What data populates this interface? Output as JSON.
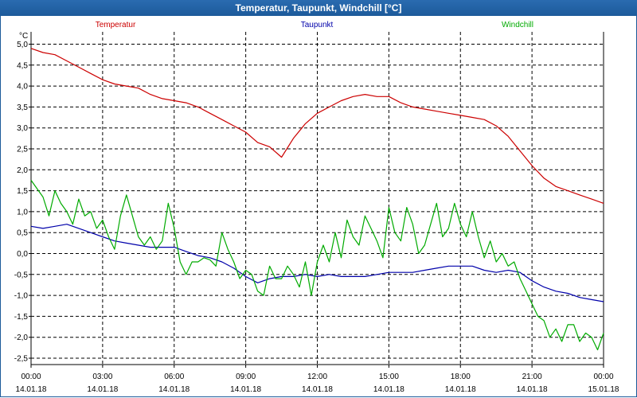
{
  "window": {
    "title": "Temperatur, Taupunkt, Windchill [°C]"
  },
  "chart_data": {
    "type": "line",
    "title": "Temperatur, Taupunkt, Windchill [°C]",
    "ylabel": "°C",
    "xlabel": "",
    "ylim": [
      -2.75,
      5.25
    ],
    "xlim": [
      0,
      24
    ],
    "grid": true,
    "legend_position": "top",
    "y_ticks": [
      5.0,
      4.5,
      4.0,
      3.5,
      3.0,
      2.5,
      2.0,
      1.5,
      1.0,
      0.5,
      0.0,
      -0.5,
      -1.0,
      -1.5,
      -2.0,
      -2.5
    ],
    "y_tick_labels": [
      "5,0",
      "4,5",
      "4,0",
      "3,5",
      "3,0",
      "2,5",
      "2,0",
      "1,5",
      "1,0",
      "0,5",
      "0,0",
      "-0,5",
      "-1,0",
      "-1,5",
      "-2,0",
      "-2,5"
    ],
    "x_ticks": [
      {
        "time": "00:00",
        "date": "14.01.18"
      },
      {
        "time": "03:00",
        "date": "14.01.18"
      },
      {
        "time": "06:00",
        "date": "14.01.18"
      },
      {
        "time": "09:00",
        "date": "14.01.18"
      },
      {
        "time": "12:00",
        "date": "14.01.18"
      },
      {
        "time": "15:00",
        "date": "14.01.18"
      },
      {
        "time": "18:00",
        "date": "14.01.18"
      },
      {
        "time": "21:00",
        "date": "14.01.18"
      },
      {
        "time": "00:00",
        "date": "15.01.18"
      }
    ],
    "series": [
      {
        "name": "Temperatur",
        "color": "#cc0000",
        "x": [
          0,
          0.5,
          1,
          1.5,
          2,
          2.5,
          3,
          3.5,
          4,
          4.5,
          5,
          5.5,
          6,
          6.5,
          7,
          7.5,
          8,
          8.5,
          9,
          9.5,
          10,
          10.5,
          11,
          11.5,
          12,
          12.5,
          13,
          13.5,
          14,
          14.5,
          15,
          15.5,
          16,
          16.5,
          17,
          17.5,
          18,
          18.5,
          19,
          19.5,
          20,
          20.5,
          21,
          21.5,
          22,
          22.5,
          23,
          23.5,
          24
        ],
        "values": [
          4.9,
          4.8,
          4.75,
          4.6,
          4.45,
          4.3,
          4.15,
          4.05,
          4.0,
          3.95,
          3.8,
          3.7,
          3.65,
          3.6,
          3.5,
          3.35,
          3.2,
          3.05,
          2.9,
          2.65,
          2.55,
          2.3,
          2.75,
          3.1,
          3.35,
          3.5,
          3.65,
          3.75,
          3.8,
          3.75,
          3.75,
          3.6,
          3.5,
          3.45,
          3.4,
          3.35,
          3.3,
          3.25,
          3.2,
          3.05,
          2.8,
          2.45,
          2.1,
          1.8,
          1.6,
          1.5,
          1.4,
          1.3,
          1.2
        ]
      },
      {
        "name": "Taupunkt",
        "color": "#0000aa",
        "x": [
          0,
          0.5,
          1,
          1.5,
          2,
          2.5,
          3,
          3.5,
          4,
          4.5,
          5,
          5.5,
          6,
          6.5,
          7,
          7.5,
          8,
          8.5,
          9,
          9.5,
          10,
          10.5,
          11,
          11.5,
          12,
          12.5,
          13,
          13.5,
          14,
          14.5,
          15,
          15.5,
          16,
          16.5,
          17,
          17.5,
          18,
          18.5,
          19,
          19.5,
          20,
          20.5,
          21,
          21.5,
          22,
          22.5,
          23,
          23.5,
          24
        ],
        "values": [
          0.65,
          0.6,
          0.65,
          0.7,
          0.6,
          0.5,
          0.4,
          0.3,
          0.25,
          0.2,
          0.15,
          0.15,
          0.15,
          0.05,
          -0.05,
          -0.1,
          -0.2,
          -0.35,
          -0.55,
          -0.7,
          -0.6,
          -0.55,
          -0.55,
          -0.5,
          -0.55,
          -0.5,
          -0.55,
          -0.55,
          -0.55,
          -0.5,
          -0.45,
          -0.45,
          -0.45,
          -0.4,
          -0.35,
          -0.3,
          -0.3,
          -0.3,
          -0.4,
          -0.45,
          -0.4,
          -0.45,
          -0.65,
          -0.8,
          -0.9,
          -0.95,
          -1.05,
          -1.1,
          -1.15
        ]
      },
      {
        "name": "Windchill",
        "color": "#00aa00",
        "x": [
          0,
          0.25,
          0.5,
          0.75,
          1,
          1.25,
          1.5,
          1.75,
          2,
          2.25,
          2.5,
          2.75,
          3,
          3.25,
          3.5,
          3.75,
          4,
          4.25,
          4.5,
          4.75,
          5,
          5.25,
          5.5,
          5.75,
          6,
          6.25,
          6.5,
          6.75,
          7,
          7.25,
          7.5,
          7.75,
          8,
          8.25,
          8.5,
          8.75,
          9,
          9.25,
          9.5,
          9.75,
          10,
          10.25,
          10.5,
          10.75,
          11,
          11.25,
          11.5,
          11.75,
          12,
          12.25,
          12.5,
          12.75,
          13,
          13.25,
          13.5,
          13.75,
          14,
          14.25,
          14.5,
          14.75,
          15,
          15.25,
          15.5,
          15.75,
          16,
          16.25,
          16.5,
          16.75,
          17,
          17.25,
          17.5,
          17.75,
          18,
          18.25,
          18.5,
          18.75,
          19,
          19.25,
          19.5,
          19.75,
          20,
          20.25,
          20.5,
          20.75,
          21,
          21.25,
          21.5,
          21.75,
          22,
          22.25,
          22.5,
          22.75,
          23,
          23.25,
          23.5,
          23.75,
          24
        ],
        "values": [
          1.75,
          1.55,
          1.35,
          0.9,
          1.5,
          1.2,
          1.0,
          0.7,
          1.3,
          0.9,
          1.0,
          0.6,
          0.8,
          0.4,
          0.1,
          0.9,
          1.4,
          0.9,
          0.4,
          0.2,
          0.4,
          0.1,
          0.3,
          1.2,
          0.6,
          -0.2,
          -0.5,
          -0.2,
          -0.2,
          -0.1,
          -0.15,
          -0.3,
          0.5,
          0.1,
          -0.2,
          -0.6,
          -0.4,
          -0.5,
          -0.9,
          -1.0,
          -0.3,
          -0.6,
          -0.6,
          -0.3,
          -0.5,
          -0.8,
          -0.2,
          -1.0,
          -0.2,
          0.2,
          -0.2,
          0.5,
          -0.1,
          0.8,
          0.4,
          0.2,
          0.9,
          0.6,
          0.3,
          -0.1,
          1.1,
          0.5,
          0.3,
          1.1,
          0.7,
          0.0,
          0.2,
          0.7,
          1.2,
          0.4,
          0.6,
          1.2,
          0.7,
          0.4,
          1.0,
          0.4,
          -0.1,
          0.3,
          -0.2,
          0.0,
          -0.3,
          -0.2,
          -0.6,
          -0.9,
          -1.2,
          -1.5,
          -1.6,
          -2.0,
          -1.8,
          -2.1,
          -1.7,
          -1.7,
          -2.1,
          -1.9,
          -2.0,
          -2.3,
          -1.9
        ]
      }
    ]
  }
}
